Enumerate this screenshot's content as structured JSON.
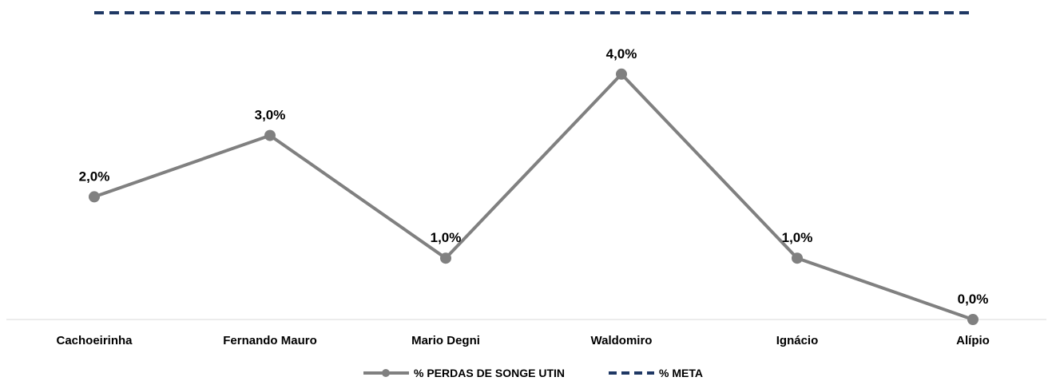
{
  "chart_data": {
    "type": "line",
    "categories": [
      "Cachoeirinha",
      "Fernando Mauro",
      "Mario Degni",
      "Waldomiro",
      "Ignácio",
      "Alípio"
    ],
    "series": [
      {
        "name": "% PERDAS DE SONGE UTIN",
        "values": [
          2.0,
          3.0,
          1.0,
          4.0,
          1.0,
          0.0
        ],
        "data_labels": [
          "2,0%",
          "3,0%",
          "1,0%",
          "4,0%",
          "1,0%",
          "0,0%"
        ],
        "color": "#808080",
        "style": "solid-with-markers"
      },
      {
        "name": "% META",
        "values": [
          5.0,
          5.0,
          5.0,
          5.0,
          5.0,
          5.0
        ],
        "color": "#1f3864",
        "style": "dashed"
      }
    ],
    "ylim": [
      0,
      5.2
    ],
    "grid": false,
    "legend_position": "bottom"
  }
}
